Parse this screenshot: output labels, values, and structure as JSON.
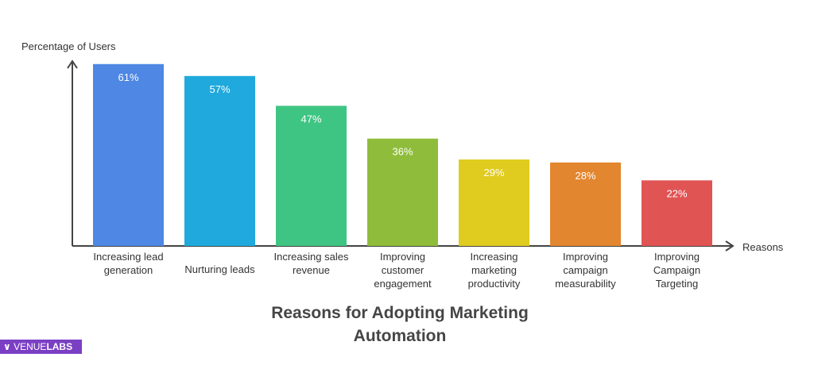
{
  "chart_data": {
    "type": "bar",
    "title": "Reasons for Adopting Marketing Automation",
    "y_label": "Percentage of Users",
    "x_label": "Reasons",
    "categories": [
      "Increasing lead generation",
      "Nurturing leads",
      "Increasing sales revenue",
      "Improving customer engagement",
      "Increasing marketing productivity",
      "Improving campaign measurability",
      "Improving Campaign Targeting"
    ],
    "values": [
      61,
      57,
      47,
      36,
      29,
      28,
      22
    ],
    "value_labels": [
      "61%",
      "57%",
      "47%",
      "36%",
      "29%",
      "28%",
      "22%"
    ],
    "colors": [
      "#4e87e4",
      "#1fa9dc",
      "#3fc583",
      "#8fbd3b",
      "#e0cb1f",
      "#e2862f",
      "#e15454"
    ],
    "ylim": [
      0,
      62
    ]
  },
  "logo": {
    "part1": "VENUE",
    "part2": "LABS"
  }
}
